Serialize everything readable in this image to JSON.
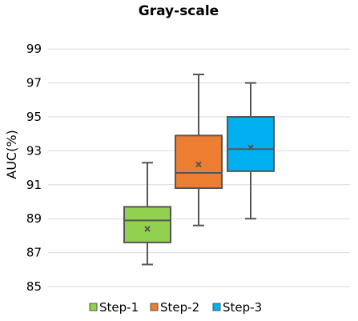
{
  "chart_data": {
    "type": "box",
    "title": "Gray-scale",
    "ylabel": "AUC(%)",
    "xlabel": "",
    "ylim": [
      85,
      100
    ],
    "yticks": [
      85,
      87,
      89,
      91,
      93,
      95,
      97,
      99
    ],
    "grid": true,
    "legend_position": "bottom",
    "series": [
      {
        "name": "Step-1",
        "color": "#92d050",
        "min": 86.3,
        "q1": 87.6,
        "median": 88.9,
        "q3": 89.7,
        "max": 92.3,
        "mean": 88.4
      },
      {
        "name": "Step-2",
        "color": "#ed7d31",
        "min": 88.6,
        "q1": 90.8,
        "median": 91.7,
        "q3": 93.9,
        "max": 97.5,
        "mean": 92.2
      },
      {
        "name": "Step-3",
        "color": "#00b0f0",
        "min": 89.0,
        "q1": 91.8,
        "median": 93.1,
        "q3": 95.0,
        "max": 97.0,
        "mean": 93.2
      }
    ]
  }
}
